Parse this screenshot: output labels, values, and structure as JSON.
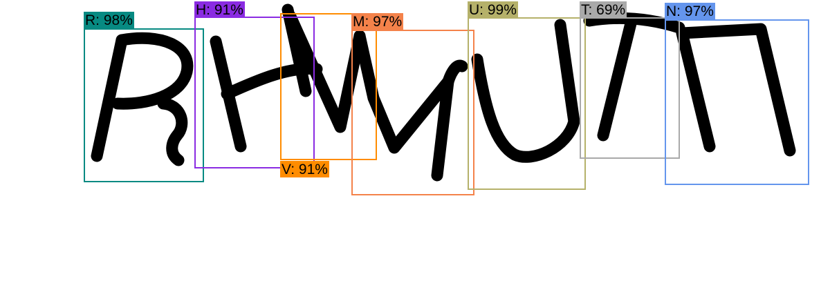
{
  "detections": [
    {
      "id": "r",
      "label": "R: 98%",
      "color": "#078a82"
    },
    {
      "id": "h",
      "label": "H: 91%",
      "color": "#8a2be2"
    },
    {
      "id": "v",
      "label": "V: 91%",
      "color": "#ff8c00"
    },
    {
      "id": "m",
      "label": "M: 97%",
      "color": "#f4824a"
    },
    {
      "id": "u",
      "label": "U: 99%",
      "color": "#b5b16a"
    },
    {
      "id": "t",
      "label": "T: 69%",
      "color": "#a9a9a9"
    },
    {
      "id": "n",
      "label": "N: 97%",
      "color": "#6495ed"
    }
  ],
  "captcha": {
    "glyphs": "RHWMUTN"
  }
}
